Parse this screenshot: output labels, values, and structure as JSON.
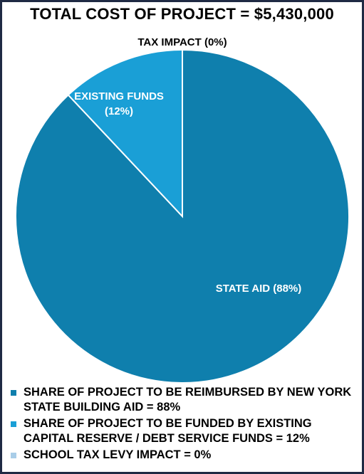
{
  "chart_data": {
    "type": "pie",
    "title": "TOTAL COST OF PROJECT = $5,430,000",
    "slices": [
      {
        "label": "STATE AID (88%)",
        "value": 88,
        "color": "#0f7fad",
        "legend": "SHARE OF PROJECT TO BE REIMBURSED BY NEW YORK STATE BUILDING AID = 88%"
      },
      {
        "label": "EXISTING FUNDS (12%)",
        "value": 12,
        "color": "#1a9fd6",
        "legend": "SHARE OF PROJECT TO BE FUNDED BY EXISTING CAPITAL RESERVE / DEBT SERVICE FUNDS = 12%"
      },
      {
        "label": "TAX IMPACT (0%)",
        "value": 0,
        "color": "#a9cde8",
        "legend": "SCHOOL TAX LEVY IMPACT = 0%"
      }
    ],
    "label_lines": {
      "state_aid": [
        "STATE AID (88%)"
      ],
      "existing_funds": [
        "EXISTING FUNDS",
        "(12%)"
      ],
      "tax_impact": [
        "TAX IMPACT (0%)"
      ]
    },
    "legend_placement": "bottom"
  }
}
